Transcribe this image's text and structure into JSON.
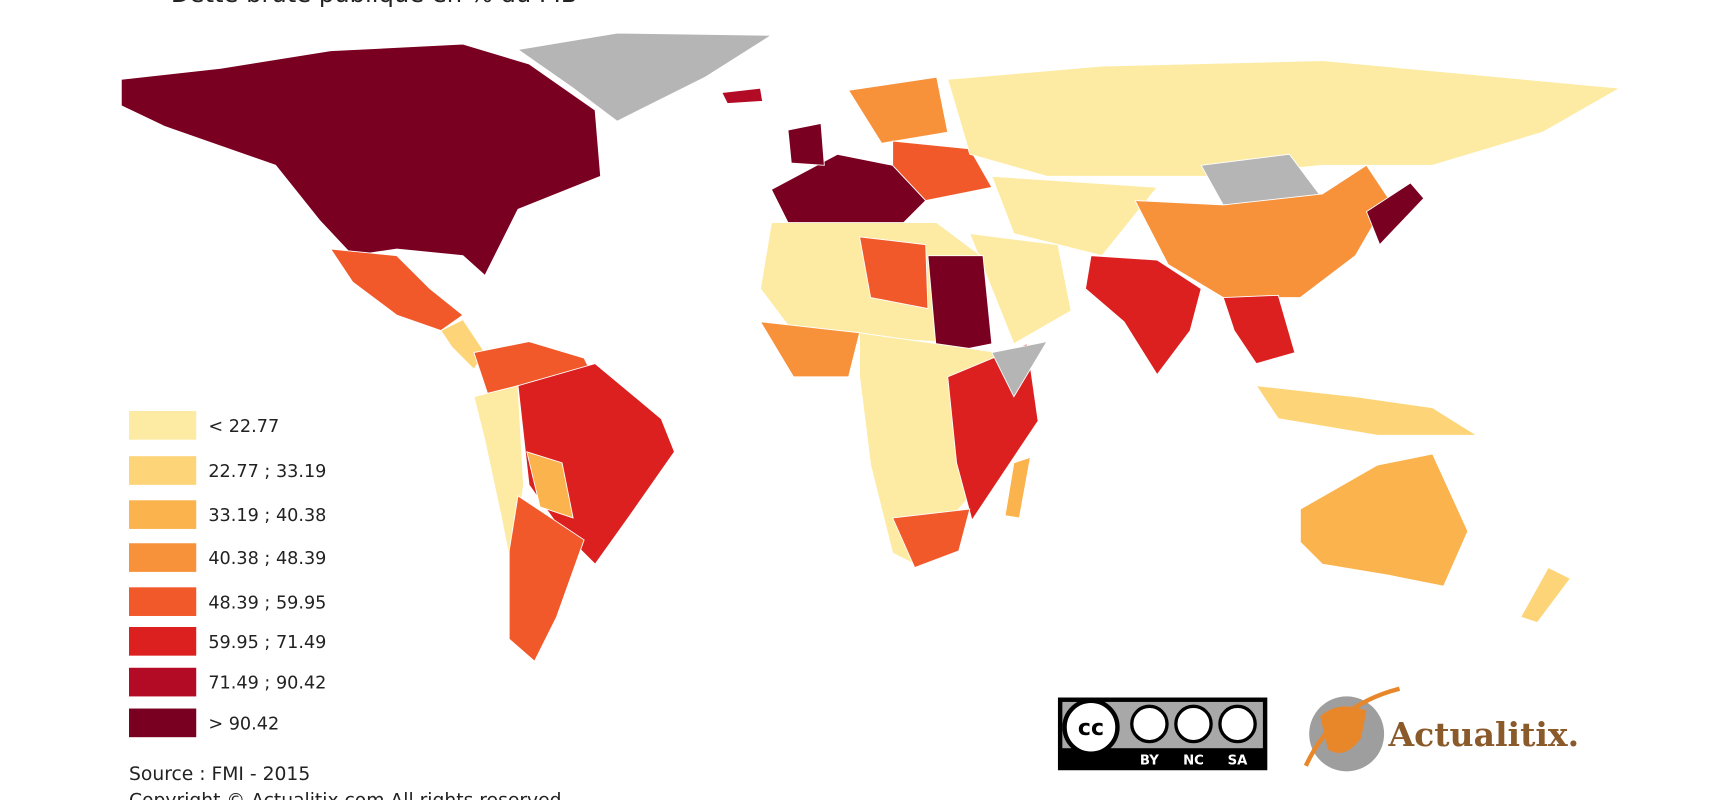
{
  "title": "Dette brute publique en % du PIB",
  "legend": {
    "items": [
      {
        "label": "< 22.77",
        "color": "#fdeba3"
      },
      {
        "label": "22.77 ; 33.19",
        "color": "#fdd578"
      },
      {
        "label": "33.19 ; 40.38",
        "color": "#fbb34d"
      },
      {
        "label": "40.38 ; 48.39",
        "color": "#f7913a"
      },
      {
        "label": "48.39 ; 59.95",
        "color": "#f1582a"
      },
      {
        "label": "59.95 ; 71.49",
        "color": "#dc2020"
      },
      {
        "label": "71.49 ; 90.42",
        "color": "#b30a26"
      },
      {
        "label": "> 90.42",
        "color": "#7a0022"
      }
    ]
  },
  "source": "Source : FMI - 2015",
  "copyright": "Copyright © Actualitix.com All rights reserved",
  "license": {
    "cc": "cc",
    "by": "BY",
    "nc": "NC",
    "sa": "SA"
  },
  "logo": "Actualitix."
}
